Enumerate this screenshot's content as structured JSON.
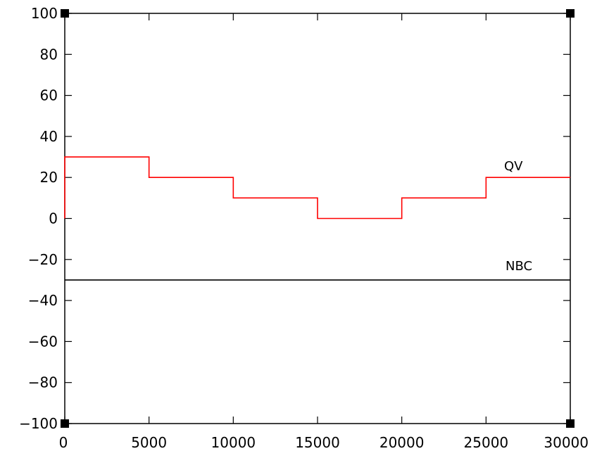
{
  "chart_data": {
    "type": "line",
    "title": "",
    "xlabel": "",
    "ylabel": "",
    "xlim": [
      0,
      30000
    ],
    "ylim": [
      -100,
      100
    ],
    "x_ticks": [
      0,
      5000,
      10000,
      15000,
      20000,
      25000,
      30000
    ],
    "y_ticks": [
      -100,
      -80,
      -60,
      -40,
      -20,
      0,
      20,
      40,
      60,
      80,
      100
    ],
    "x_tick_labels": [
      "0",
      "5000",
      "10000",
      "15000",
      "20000",
      "25000",
      "30000"
    ],
    "y_tick_labels": [
      "−100",
      "−80",
      "−60",
      "−40",
      "−20",
      "0",
      "20",
      "40",
      "60",
      "80",
      "100"
    ],
    "grid": false,
    "series": [
      {
        "name": "QV",
        "color": "#ff0000",
        "step": true,
        "x": [
          0,
          5000,
          10000,
          15000,
          20000,
          25000,
          30000
        ],
        "y": [
          30,
          20,
          10,
          0,
          10,
          20,
          20
        ],
        "start_value": 0
      },
      {
        "name": "NBC",
        "color": "#000000",
        "step": false,
        "x": [
          0,
          30000
        ],
        "y": [
          -30,
          -30
        ]
      }
    ]
  }
}
